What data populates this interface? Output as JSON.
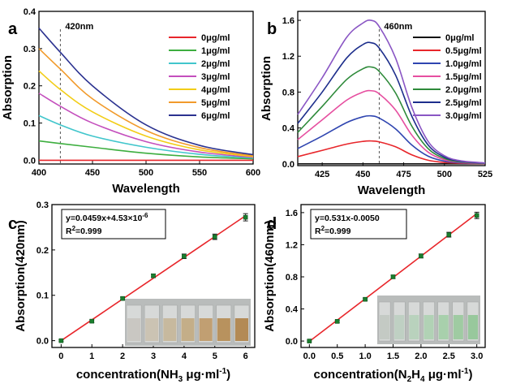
{
  "chart_data": [
    {
      "type": "line",
      "panel": "a",
      "xlabel": "Wavelength",
      "ylabel": "Absorption",
      "xlim": [
        400,
        600
      ],
      "ylim": [
        -0.01,
        0.4
      ],
      "xticks": [
        "400",
        "450",
        "500",
        "550",
        "600"
      ],
      "yticks": [
        "0.0",
        "0.1",
        "0.2",
        "0.3",
        "0.4"
      ],
      "marker_line": {
        "x": 420,
        "label": "420nm"
      },
      "legend_position": "top-right",
      "x": [
        400,
        420,
        450,
        500,
        550,
        600
      ],
      "series": [
        {
          "name": "0μg/ml",
          "color": "#e8262b",
          "values": [
            0.0,
            0.0,
            0.0,
            0.0,
            0.0,
            0.0
          ]
        },
        {
          "name": "1μg/ml",
          "color": "#3dae3f",
          "values": [
            0.052,
            0.045,
            0.035,
            0.019,
            0.009,
            0.004
          ]
        },
        {
          "name": "2μg/ml",
          "color": "#41c6cc",
          "values": [
            0.12,
            0.095,
            0.065,
            0.035,
            0.016,
            0.006
          ]
        },
        {
          "name": "3μg/ml",
          "color": "#c44fbd",
          "values": [
            0.18,
            0.145,
            0.1,
            0.05,
            0.022,
            0.008
          ]
        },
        {
          "name": "4μg/ml",
          "color": "#f2cd17",
          "values": [
            0.24,
            0.19,
            0.13,
            0.065,
            0.028,
            0.01
          ]
        },
        {
          "name": "5μg/ml",
          "color": "#f19a2b",
          "values": [
            0.3,
            0.245,
            0.165,
            0.08,
            0.034,
            0.012
          ]
        },
        {
          "name": "6μg/ml",
          "color": "#2b3290",
          "values": [
            0.355,
            0.29,
            0.2,
            0.095,
            0.04,
            0.015
          ]
        }
      ]
    },
    {
      "type": "line",
      "panel": "b",
      "xlabel": "Wavelength",
      "ylabel": "Absorption",
      "xlim": [
        410,
        525
      ],
      "ylim": [
        -0.02,
        1.7
      ],
      "xticks": [
        "425",
        "450",
        "475",
        "500",
        "525"
      ],
      "yticks": [
        "0.0",
        "0.4",
        "0.8",
        "1.2",
        "1.6"
      ],
      "marker_line": {
        "x": 460,
        "label": "460nm"
      },
      "legend_position": "top-right",
      "x": [
        410,
        425,
        440,
        450,
        455,
        460,
        470,
        480,
        490,
        500,
        510,
        525
      ],
      "series": [
        {
          "name": "0μg/ml",
          "color": "#111111",
          "values": [
            0.0,
            0.0,
            0.0,
            0.0,
            0.0,
            0.0,
            0.0,
            0.0,
            0.0,
            0.0,
            0.0,
            0.0
          ]
        },
        {
          "name": "0.5μg/ml",
          "color": "#e8262b",
          "values": [
            0.08,
            0.15,
            0.22,
            0.25,
            0.255,
            0.245,
            0.19,
            0.1,
            0.04,
            0.015,
            0.006,
            0.002
          ]
        },
        {
          "name": "1.0μg/ml",
          "color": "#2f45b0",
          "values": [
            0.17,
            0.31,
            0.46,
            0.525,
            0.535,
            0.51,
            0.39,
            0.21,
            0.085,
            0.03,
            0.012,
            0.004
          ]
        },
        {
          "name": "1.5μg/ml",
          "color": "#e64fa0",
          "values": [
            0.27,
            0.49,
            0.71,
            0.8,
            0.815,
            0.78,
            0.6,
            0.32,
            0.13,
            0.045,
            0.018,
            0.005
          ]
        },
        {
          "name": "2.0μg/ml",
          "color": "#2e8a3a",
          "values": [
            0.35,
            0.64,
            0.94,
            1.06,
            1.08,
            1.03,
            0.79,
            0.42,
            0.17,
            0.06,
            0.022,
            0.006
          ]
        },
        {
          "name": "2.5μg/ml",
          "color": "#1d2e8c",
          "values": [
            0.45,
            0.8,
            1.18,
            1.33,
            1.35,
            1.29,
            0.99,
            0.53,
            0.21,
            0.075,
            0.028,
            0.008
          ]
        },
        {
          "name": "3.0μg/ml",
          "color": "#8a56c4",
          "values": [
            0.55,
            0.96,
            1.41,
            1.57,
            1.6,
            1.53,
            1.18,
            0.63,
            0.25,
            0.09,
            0.034,
            0.01
          ]
        }
      ]
    },
    {
      "type": "scatter",
      "panel": "c",
      "xlabel": "concentration(NH3 μg·ml-1)",
      "xlabel_parts": {
        "a": "concentration(NH",
        "sub": "3",
        "b": " μg·ml",
        "sup": "-1",
        "c": ")"
      },
      "ylabel": "Absorption(420nm)",
      "xlim": [
        -0.3,
        6.3
      ],
      "ylim": [
        -0.015,
        0.3
      ],
      "xticks": [
        "0",
        "1",
        "2",
        "3",
        "4",
        "5",
        "6"
      ],
      "yticks": [
        "0.0",
        "0.1",
        "0.2",
        "0.3"
      ],
      "equation": {
        "a": "y=0.0459x+4.53×10",
        "sup": "-6"
      },
      "r2": {
        "a": "R",
        "sup": "2",
        "b": "=0.999"
      },
      "fit": {
        "slope": 0.0459,
        "intercept": 4.53e-06
      },
      "x": [
        0,
        1,
        2,
        3,
        4,
        5,
        6
      ],
      "y": [
        0.0,
        0.043,
        0.093,
        0.143,
        0.186,
        0.229,
        0.272
      ],
      "yerr": [
        0.002,
        0.003,
        0.003,
        0.004,
        0.005,
        0.006,
        0.008
      ],
      "marker_color": "#1a7f2e",
      "line_color": "#e8262b"
    },
    {
      "type": "scatter",
      "panel": "d",
      "xlabel": "concentration(N2H4 μg·ml-1)",
      "xlabel_parts": {
        "a": "concentration(N",
        "sub1": "2",
        "mid": "H",
        "sub2": "4",
        "b": " μg·ml",
        "sup": "-1",
        "c": ")"
      },
      "ylabel": "Absorption(460nm)",
      "xlim": [
        -0.15,
        3.15
      ],
      "ylim": [
        -0.08,
        1.7
      ],
      "xticks": [
        "0.0",
        "0.5",
        "1.0",
        "1.5",
        "2.0",
        "2.5",
        "3.0"
      ],
      "yticks": [
        "0.0",
        "0.4",
        "0.8",
        "1.2",
        "1.6"
      ],
      "equation": {
        "a": "y=0.531x-0.0050"
      },
      "r2": {
        "a": "R",
        "sup": "2",
        "b": "=0.999"
      },
      "fit": {
        "slope": 0.531,
        "intercept": -0.005
      },
      "x": [
        0,
        0.5,
        1.0,
        1.5,
        2.0,
        2.5,
        3.0
      ],
      "y": [
        0.0,
        0.245,
        0.52,
        0.8,
        1.06,
        1.325,
        1.565
      ],
      "yerr": [
        0.01,
        0.015,
        0.015,
        0.02,
        0.025,
        0.03,
        0.04
      ],
      "marker_color": "#1a7f2e",
      "line_color": "#e8262b"
    }
  ]
}
